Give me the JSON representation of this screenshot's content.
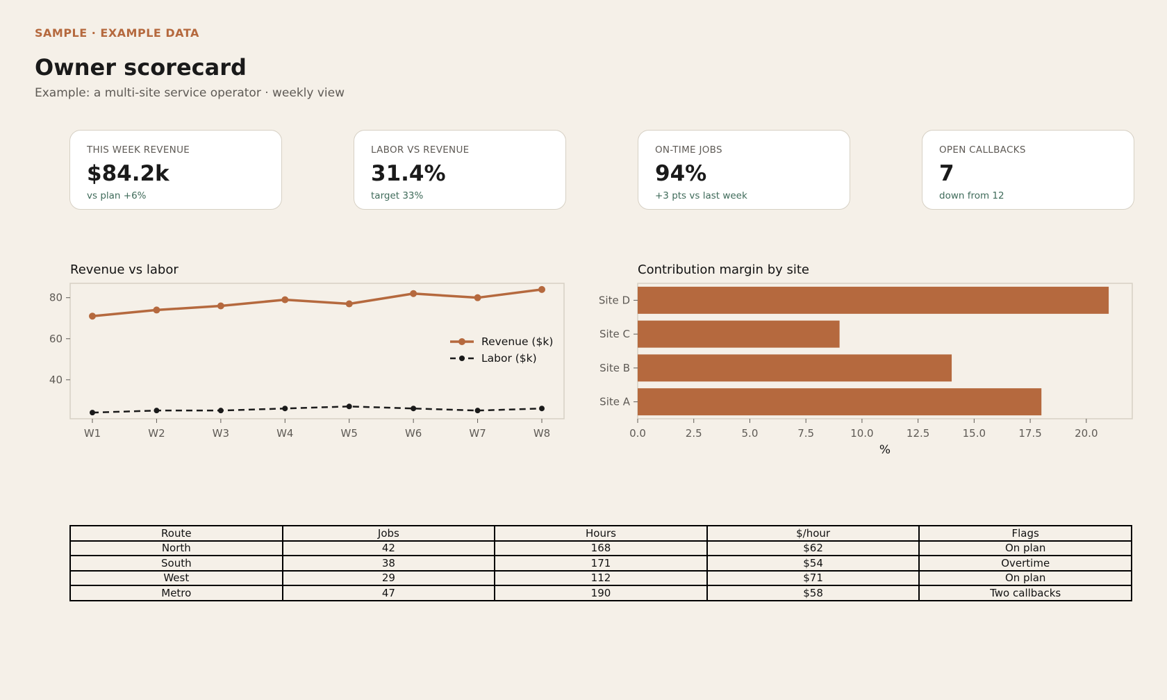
{
  "header": {
    "eyebrow": "SAMPLE  ·  EXAMPLE DATA",
    "title": "Owner scorecard",
    "subtitle": "Example: a multi-site service operator  ·  weekly view"
  },
  "kpis": [
    {
      "label": "THIS WEEK REVENUE",
      "value": "$84.2k",
      "note": "vs plan +6%"
    },
    {
      "label": "LABOR VS REVENUE",
      "value": "31.4%",
      "note": "target 33%"
    },
    {
      "label": "ON-TIME JOBS",
      "value": "94%",
      "note": "+3 pts vs last week"
    },
    {
      "label": "OPEN CALLBACKS",
      "value": "7",
      "note": "down from 12"
    }
  ],
  "colors": {
    "accent": "#b5693e",
    "background": "#f5f0e8",
    "positive_note": "#3f6b5a",
    "labor_line": "#1a1a1a"
  },
  "chart_data": [
    {
      "type": "line",
      "title": "Revenue vs labor",
      "x": [
        "W1",
        "W2",
        "W3",
        "W4",
        "W5",
        "W6",
        "W7",
        "W8"
      ],
      "series": [
        {
          "name": "Revenue ($k)",
          "values": [
            71,
            74,
            76,
            79,
            77,
            82,
            80,
            84
          ],
          "style": "solid",
          "color": "#b5693e"
        },
        {
          "name": "Labor ($k)",
          "values": [
            24,
            25,
            25,
            26,
            27,
            26,
            25,
            26
          ],
          "style": "dashed",
          "color": "#1a1a1a"
        }
      ],
      "yticks": [
        40,
        60,
        80
      ],
      "ylim": [
        21,
        87
      ],
      "legend": "center-right",
      "grid": false
    },
    {
      "type": "bar",
      "orientation": "horizontal",
      "title": "Contribution margin by site",
      "categories": [
        "Site A",
        "Site B",
        "Site C",
        "Site D"
      ],
      "values": [
        18,
        14,
        9,
        21
      ],
      "xlabel": "%",
      "xticks": [
        "0.0",
        "2.5",
        "5.0",
        "7.5",
        "10.0",
        "12.5",
        "15.0",
        "17.5",
        "20.0"
      ],
      "xlim": [
        0,
        22.05
      ],
      "color": "#b5693e",
      "grid": false
    }
  ],
  "table": {
    "headers": [
      "Route",
      "Jobs",
      "Hours",
      "$/hour",
      "Flags"
    ],
    "rows": [
      [
        "North",
        "42",
        "168",
        "$62",
        "On plan"
      ],
      [
        "South",
        "38",
        "171",
        "$54",
        "Overtime"
      ],
      [
        "West",
        "29",
        "112",
        "$71",
        "On plan"
      ],
      [
        "Metro",
        "47",
        "190",
        "$58",
        "Two callbacks"
      ]
    ]
  }
}
